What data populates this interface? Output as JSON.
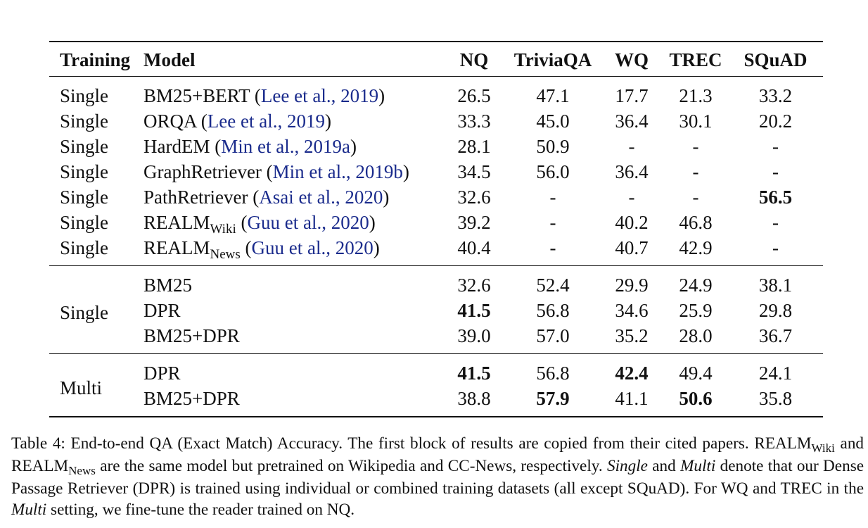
{
  "table": {
    "headers": {
      "training": "Training",
      "model": "Model",
      "nq": "NQ",
      "triviaqa": "TriviaQA",
      "wq": "WQ",
      "trec": "TREC",
      "squad": "SQuAD"
    },
    "block1": [
      {
        "training": "Single",
        "model": "BM25+BERT (",
        "cite": "Lee et al., 2019",
        "close": ")",
        "nq": "26.5",
        "triviaqa": "47.1",
        "wq": "17.7",
        "trec": "21.3",
        "squad": "33.2"
      },
      {
        "training": "Single",
        "model": "ORQA (",
        "cite": "Lee et al., 2019",
        "close": ")",
        "nq": "33.3",
        "triviaqa": "45.0",
        "wq": "36.4",
        "trec": "30.1",
        "squad": "20.2"
      },
      {
        "training": "Single",
        "model": "HardEM (",
        "cite": "Min et al., 2019a",
        "close": ")",
        "nq": "28.1",
        "triviaqa": "50.9",
        "wq": "-",
        "trec": "-",
        "squad": "-"
      },
      {
        "training": "Single",
        "model": "GraphRetriever (",
        "cite": "Min et al., 2019b",
        "close": ")",
        "nq": "34.5",
        "triviaqa": "56.0",
        "wq": "36.4",
        "trec": "-",
        "squad": "-"
      },
      {
        "training": "Single",
        "model": "PathRetriever (",
        "cite": "Asai et al., 2020",
        "close": ")",
        "nq": "32.6",
        "triviaqa": "-",
        "wq": "-",
        "trec": "-",
        "squad": "56.5"
      },
      {
        "training": "Single",
        "model": "REALM",
        "model_sub": "Wiki",
        "model_after": " (",
        "cite": "Guu et al., 2020",
        "close": ")",
        "nq": "39.2",
        "triviaqa": "-",
        "wq": "40.2",
        "trec": "46.8",
        "squad": "-"
      },
      {
        "training": "Single",
        "model": "REALM",
        "model_sub": "News",
        "model_after": " (",
        "cite": "Guu et al., 2020",
        "close": ")",
        "nq": "40.4",
        "triviaqa": "-",
        "wq": "40.7",
        "trec": "42.9",
        "squad": "-"
      }
    ],
    "block2": {
      "training": "Single",
      "rows": [
        {
          "model": "BM25",
          "nq": "32.6",
          "triviaqa": "52.4",
          "wq": "29.9",
          "trec": "24.9",
          "squad": "38.1"
        },
        {
          "model": "DPR",
          "nq": "41.5",
          "triviaqa": "56.8",
          "wq": "34.6",
          "trec": "25.9",
          "squad": "29.8"
        },
        {
          "model": "BM25+DPR",
          "nq": "39.0",
          "triviaqa": "57.0",
          "wq": "35.2",
          "trec": "28.0",
          "squad": "36.7"
        }
      ]
    },
    "block3": {
      "training": "Multi",
      "rows": [
        {
          "model": "DPR",
          "nq": "41.5",
          "triviaqa": "56.8",
          "wq": "42.4",
          "trec": "49.4",
          "squad": "24.1"
        },
        {
          "model": "BM25+DPR",
          "nq": "38.8",
          "triviaqa": "57.9",
          "wq": "41.1",
          "trec": "50.6",
          "squad": "35.8"
        }
      ]
    }
  },
  "caption": {
    "s1": "Table 4: End-to-end QA (Exact Match) Accuracy. The first block of results are copied from their cited papers.",
    "realm": "REALM",
    "wiki": "Wiki",
    "and": " and ",
    "news": "News",
    "s2": " are the same model but pretrained on Wikipedia and CC-News, respectively. ",
    "single": "Single",
    "and2": " and ",
    "multi": "Multi",
    "s3": " denote that our Dense Passage Retriever (DPR) is trained using individual or combined training datasets (all except SQuAD). For WQ and TREC in the ",
    "multi2": "Multi",
    "s4": " setting, we fine-tune the reader trained on NQ."
  }
}
